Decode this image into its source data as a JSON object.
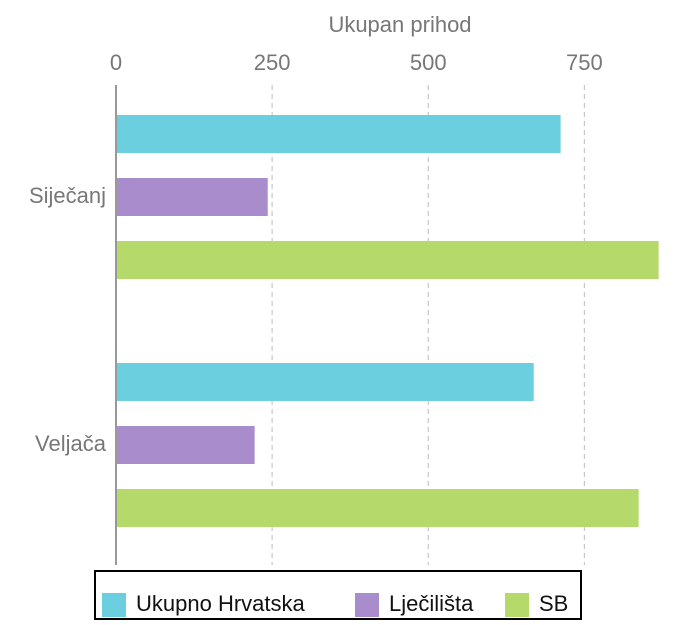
{
  "chart_data": {
    "type": "barh",
    "x_label": "Ukupan prihod",
    "categories": [
      "Siječanj",
      "Veljača"
    ],
    "series": [
      {
        "name": "Ukupno Hrvatska",
        "color": "#6ccfe0",
        "values": [
          712,
          669
        ]
      },
      {
        "name": "Lječilišta",
        "color": "#a98ccc",
        "values": [
          243,
          222
        ]
      },
      {
        "name": "SB",
        "color": "#b5d96b",
        "values": [
          869,
          837
        ]
      }
    ],
    "xlim": [
      0,
      900
    ],
    "xticks": [
      0,
      250,
      500,
      750
    ],
    "grid": true,
    "legend": "bottom"
  }
}
